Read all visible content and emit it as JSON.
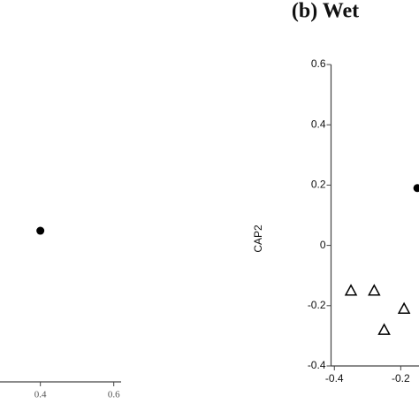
{
  "chart_data": [
    {
      "type": "scatter",
      "xlim": [
        0.29,
        0.62
      ],
      "xticks": [
        0.4,
        0.6
      ],
      "ylim": [
        -0.45,
        0.6
      ],
      "series": [
        {
          "marker": "circle",
          "color": "#000000",
          "x": [
            0.4
          ],
          "values": [
            0.05
          ]
        }
      ]
    },
    {
      "type": "scatter",
      "title": "(b) Wet",
      "y_label": "CAP2",
      "xlim": [
        -0.41,
        -0.145
      ],
      "xticks": [
        -0.4,
        -0.2
      ],
      "ylim": [
        -0.4,
        0.6
      ],
      "yticks": [
        0.6,
        0.4,
        0.2,
        0,
        -0.2,
        -0.4
      ],
      "series": [
        {
          "marker": "triangle",
          "color": "#000000",
          "x": [
            -0.35,
            -0.28,
            -0.19,
            -0.25
          ],
          "values": [
            -0.15,
            -0.15,
            -0.21,
            -0.28
          ]
        },
        {
          "marker": "circle",
          "color": "#000000",
          "x": [
            -0.15
          ],
          "values": [
            0.19
          ]
        }
      ]
    }
  ]
}
